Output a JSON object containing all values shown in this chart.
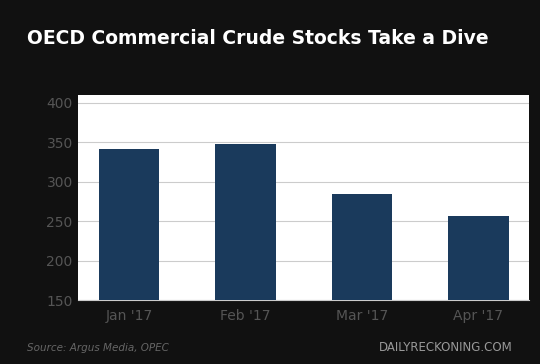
{
  "categories": [
    "Jan '17",
    "Feb '17",
    "Mar '17",
    "Apr '17"
  ],
  "values": [
    341,
    348,
    285,
    256
  ],
  "bar_color": "#1a3a5c",
  "title": "OECD Commercial Crude Stocks Take a Dive",
  "ylim": [
    150,
    410
  ],
  "yticks": [
    150,
    200,
    250,
    300,
    350,
    400
  ],
  "source_text": "Source: Argus Media, OPEC",
  "watermark_text": "DAILYRECKONING.COM",
  "chart_bg": "#ffffff",
  "outer_bg": "#111111",
  "title_color": "#ffffff",
  "title_fontsize": 13.5,
  "tick_fontsize": 10,
  "source_fontsize": 7.5,
  "watermark_fontsize": 8.5,
  "axis_tick_color": "#555555",
  "grid_color": "#cccccc",
  "source_color": "#666666",
  "watermark_color": "#999999"
}
